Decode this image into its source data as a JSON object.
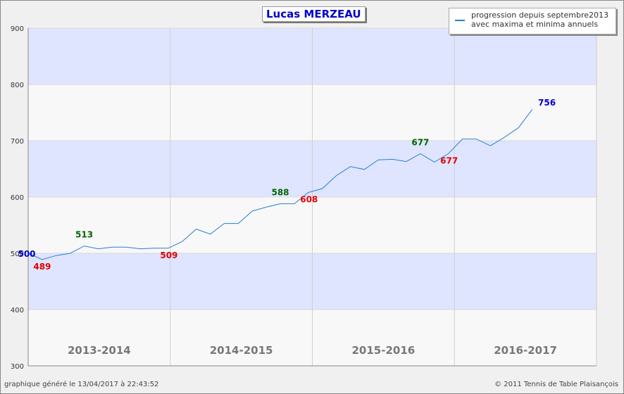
{
  "chart_data": {
    "type": "line",
    "title": "Lucas MERZEAU",
    "legend": [
      "progression depuis septembre2013",
      "avec maxima et minima annuels"
    ],
    "legend_position": "top-right",
    "ylim": [
      300,
      900
    ],
    "yticks": [
      300,
      400,
      500,
      600,
      700,
      800,
      900
    ],
    "grid": true,
    "seasons": [
      "2013-2014",
      "2014-2015",
      "2015-2016",
      "2016-2017"
    ],
    "series": [
      {
        "color": "#2a7fd4",
        "x": [
          0,
          1,
          2,
          3,
          4,
          5,
          6,
          7,
          8,
          9,
          10,
          11,
          12,
          13,
          14,
          15,
          16,
          17,
          18,
          19,
          20,
          21,
          22,
          23,
          24,
          25,
          26,
          27,
          28,
          29,
          30,
          31,
          32,
          33,
          34,
          35,
          36
        ],
        "values": [
          500,
          489,
          496,
          500,
          513,
          508,
          511,
          511,
          508,
          509,
          509,
          521,
          543,
          534,
          553,
          553,
          575,
          582,
          588,
          588,
          608,
          615,
          638,
          654,
          649,
          666,
          667,
          663,
          677,
          662,
          677,
          703,
          703,
          691,
          706,
          723,
          756
        ]
      }
    ],
    "annotations": [
      {
        "x": 0,
        "value": 500,
        "label": "500",
        "kind": "start",
        "color": "#0000cc"
      },
      {
        "x": 1,
        "value": 489,
        "label": "489",
        "kind": "min",
        "color": "#e00000"
      },
      {
        "x": 4,
        "value": 513,
        "label": "513",
        "kind": "max",
        "color": "#006600"
      },
      {
        "x": 10,
        "value": 509,
        "label": "509",
        "kind": "min",
        "color": "#e00000"
      },
      {
        "x": 18,
        "value": 588,
        "label": "588",
        "kind": "max",
        "color": "#006600"
      },
      {
        "x": 20,
        "value": 608,
        "label": "608",
        "kind": "min",
        "color": "#e00000"
      },
      {
        "x": 28,
        "value": 677,
        "label": "677",
        "kind": "max",
        "color": "#006600"
      },
      {
        "x": 30,
        "value": 677,
        "label": "677",
        "kind": "min",
        "color": "#e00000"
      },
      {
        "x": 36,
        "value": 756,
        "label": "756",
        "kind": "end",
        "color": "#0000cc"
      }
    ]
  },
  "colors": {
    "band_blue": "#dfe5ff",
    "band_white": "#f8f8f8",
    "line": "#2a7fd4",
    "season_label": "#777777"
  },
  "footer": {
    "generated": "graphique généré le 13/04/2017 à 22:43:52",
    "copyright": "© 2011 Tennis de Table Plaisançois"
  }
}
